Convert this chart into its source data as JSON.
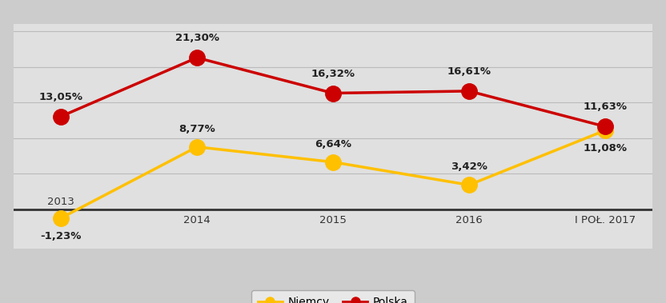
{
  "categories": [
    "2013",
    "2014",
    "2015",
    "2016",
    "I POŁ. 2017"
  ],
  "niemcy": [
    -1.23,
    8.77,
    6.64,
    3.42,
    11.08
  ],
  "polska": [
    13.05,
    21.3,
    16.32,
    16.61,
    11.63
  ],
  "niemcy_labels": [
    "-1,23%",
    "8,77%",
    "6,64%",
    "3,42%",
    "11,08%"
  ],
  "polska_labels": [
    "13,05%",
    "21,30%",
    "16,32%",
    "16,61%",
    "11,63%"
  ],
  "niemcy_color": "#FFC000",
  "polska_color": "#CC0000",
  "background_color": "#CCCCCC",
  "plot_bg_color": "#E0E0E0",
  "legend_labels": [
    "Niemcy",
    "Polska"
  ],
  "ylim": [
    -5.5,
    26
  ],
  "marker_size": 14,
  "line_width": 2.5,
  "label_fontsize": 9.5,
  "xtick_fontsize": 9.5
}
